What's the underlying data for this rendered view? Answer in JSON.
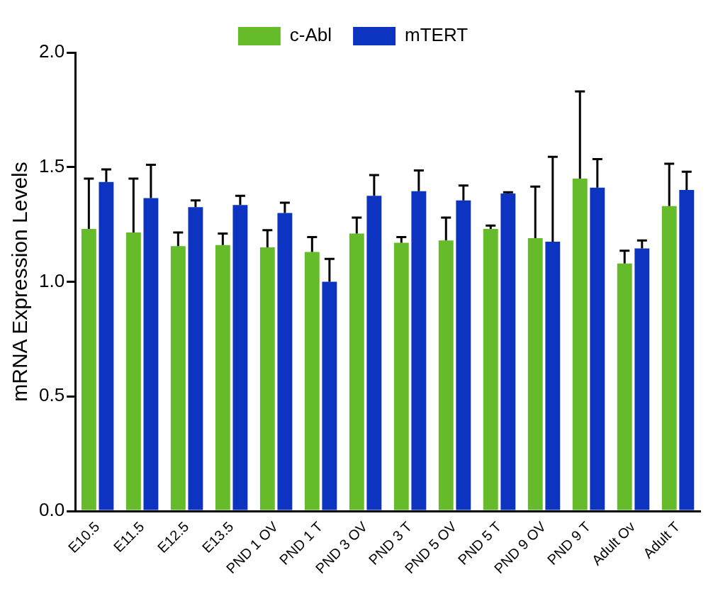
{
  "chart_data": {
    "type": "bar",
    "ylabel": "mRNA Expression Levels",
    "categories": [
      "E10.5",
      "E11.5",
      "E12.5",
      "E13.5",
      "PND 1 OV",
      "PND 1 T",
      "PND 3 OV",
      "PND 3 T",
      "PND 5 OV",
      "PND 5 T",
      "PND 9 OV",
      "PND 9 T",
      "Adult Ov",
      "Adult T"
    ],
    "series": [
      {
        "name": "c-Abl",
        "color": "#66bb2a",
        "values": [
          1.23,
          1.215,
          1.155,
          1.16,
          1.15,
          1.13,
          1.21,
          1.17,
          1.18,
          1.23,
          1.19,
          1.45,
          1.08,
          1.33
        ],
        "errors": [
          0.22,
          0.235,
          0.06,
          0.05,
          0.075,
          0.065,
          0.07,
          0.025,
          0.1,
          0.015,
          0.225,
          0.38,
          0.055,
          0.185
        ]
      },
      {
        "name": "mTERT",
        "color": "#0c34c0",
        "values": [
          1.435,
          1.365,
          1.325,
          1.335,
          1.3,
          1.0,
          1.375,
          1.395,
          1.355,
          1.385,
          1.175,
          1.41,
          1.145,
          1.4
        ],
        "errors": [
          0.055,
          0.145,
          0.03,
          0.04,
          0.045,
          0.1,
          0.09,
          0.09,
          0.065,
          0.005,
          0.37,
          0.125,
          0.035,
          0.08
        ]
      }
    ],
    "ylim": [
      0,
      2
    ],
    "yticks": [
      {
        "value": 0,
        "label": "0.0"
      },
      {
        "value": 0.5,
        "label": "0.5"
      },
      {
        "value": 1,
        "label": "1.0"
      },
      {
        "value": 1.5,
        "label": "1.5"
      },
      {
        "value": 2,
        "label": "2.0"
      }
    ],
    "grid": false,
    "legend": "top"
  }
}
